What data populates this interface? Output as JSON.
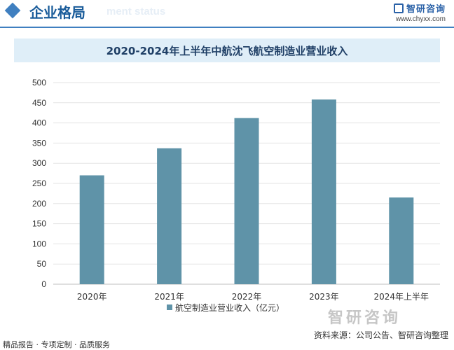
{
  "header": {
    "title": "企业格局",
    "ghost_text": "ment status",
    "brand_name": "智研咨询",
    "brand_url": "www.chyxx.com"
  },
  "watermark": "智研咨询",
  "footer": {
    "left": "精品报告 · 专项定制 · 品质服务",
    "source": "资料来源：公司公告、智研咨询整理"
  },
  "colors": {
    "bar": "#5f93a8",
    "accent": "#3f7fc0",
    "title_bg": "#dfeef8"
  },
  "chart_data": {
    "type": "bar",
    "title": "2020-2024年上半年中航沈飞航空制造业营业收入",
    "categories": [
      "2020年",
      "2021年",
      "2022年",
      "2023年",
      "2024年上半年"
    ],
    "series": [
      {
        "name": "航空制造业营业收入（亿元）",
        "values": [
          270,
          337,
          412,
          458,
          215
        ]
      }
    ],
    "ylim": [
      0,
      500
    ],
    "yticks": [
      0,
      50,
      100,
      150,
      200,
      250,
      300,
      350,
      400,
      450,
      500
    ],
    "grid": true,
    "legend": "bottom"
  }
}
